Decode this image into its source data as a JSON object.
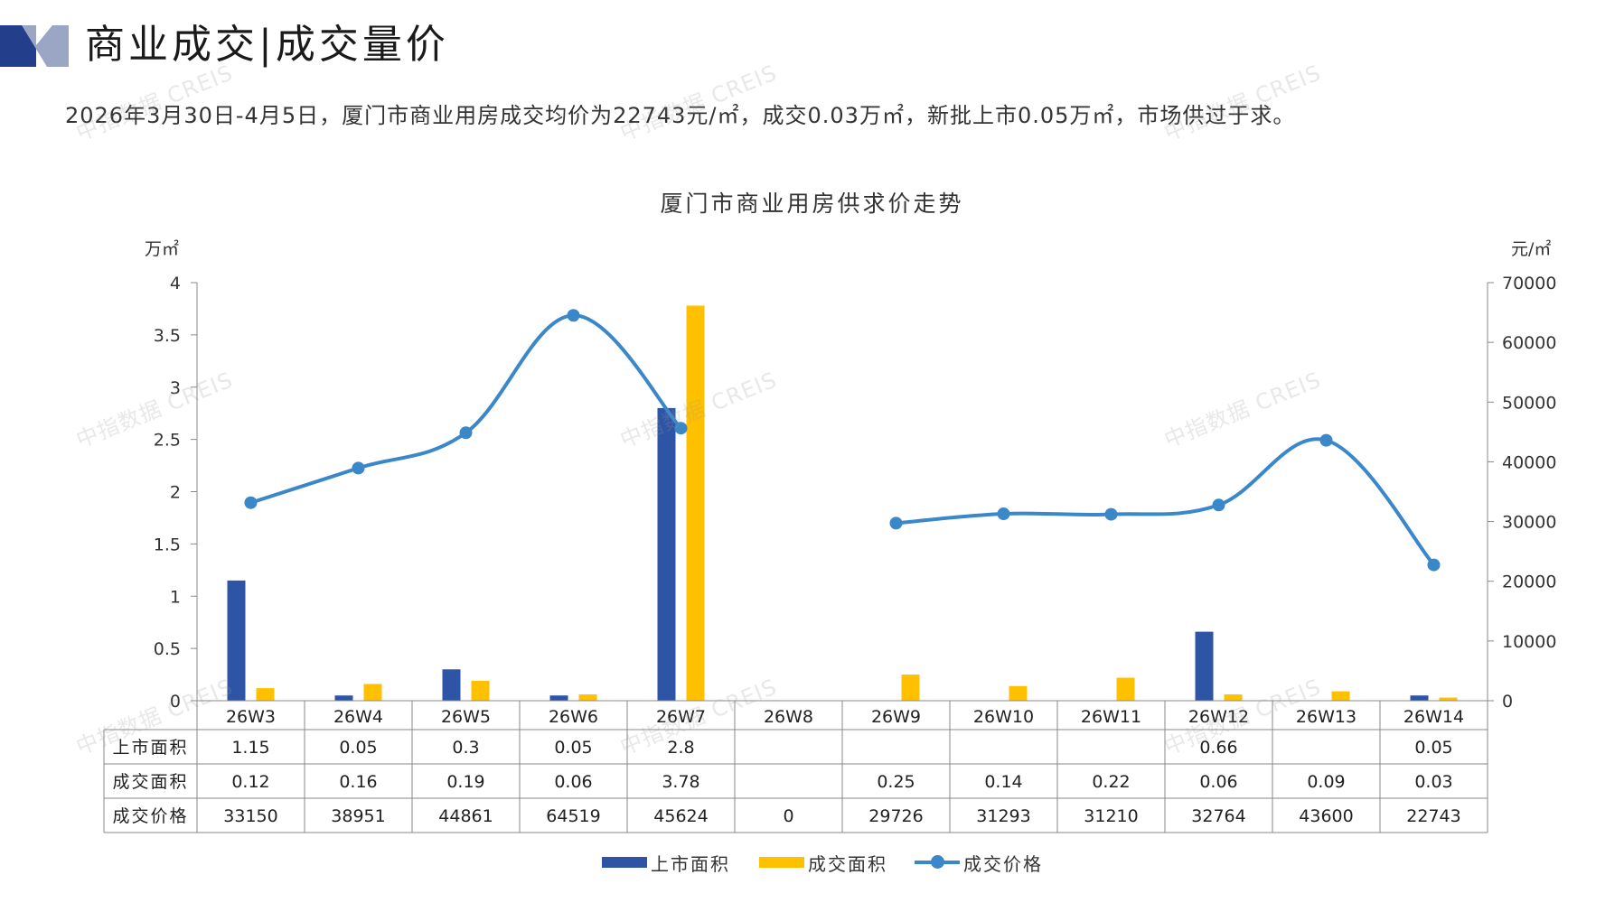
{
  "page": {
    "title": "商业成交|成交量价",
    "summary": "2026年3月30日-4月5日，厦门市商业用房成交均价为22743元/㎡，成交0.03万㎡，新批上市0.05万㎡，市场供过于求。"
  },
  "colors": {
    "listed": "#2E55A5",
    "traded": "#FFC000",
    "price": "#3A87C9",
    "logo_dark": "#233E8B",
    "logo_light": "#9AA6C4"
  },
  "watermark": {
    "text": "中指数据 CREIS"
  },
  "chart_data": {
    "type": "bar+line",
    "title": "厦门市商业用房供求价走势",
    "categories": [
      "26W3",
      "26W4",
      "26W5",
      "26W6",
      "26W7",
      "26W8",
      "26W9",
      "26W10",
      "26W11",
      "26W12",
      "26W13",
      "26W14"
    ],
    "y_left": {
      "unit": "万㎡",
      "ylim": [
        0,
        4
      ],
      "ticks": [
        "0",
        "0.5",
        "1",
        "1.5",
        "2",
        "2.5",
        "3",
        "3.5",
        "4"
      ]
    },
    "y_right": {
      "unit": "元/㎡",
      "ylim": [
        0,
        70000
      ],
      "ticks": [
        "0",
        "10000",
        "20000",
        "30000",
        "40000",
        "50000",
        "60000",
        "70000"
      ]
    },
    "series": [
      {
        "name": "上市面积",
        "type": "bar",
        "axis": "left",
        "values": [
          1.15,
          0.05,
          0.3,
          0.05,
          2.8,
          null,
          null,
          null,
          null,
          0.66,
          null,
          0.05
        ],
        "labels": [
          "1.15",
          "0.05",
          "0.3",
          "0.05",
          "2.8",
          "",
          "",
          "",
          "",
          "0.66",
          "",
          "0.05"
        ]
      },
      {
        "name": "成交面积",
        "type": "bar",
        "axis": "left",
        "values": [
          0.12,
          0.16,
          0.19,
          0.06,
          3.78,
          null,
          0.25,
          0.14,
          0.22,
          0.06,
          0.09,
          0.03
        ],
        "labels": [
          "0.12",
          "0.16",
          "0.19",
          "0.06",
          "3.78",
          "",
          "0.25",
          "0.14",
          "0.22",
          "0.06",
          "0.09",
          "0.03"
        ]
      },
      {
        "name": "成交价格",
        "type": "line",
        "axis": "right",
        "values": [
          33150,
          38951,
          44861,
          64519,
          45624,
          0,
          29726,
          31293,
          31210,
          32764,
          43600,
          22743
        ],
        "labels": [
          "33150",
          "38951",
          "44861",
          "64519",
          "45624",
          "0",
          "29726",
          "31293",
          "31210",
          "32764",
          "43600",
          "22743"
        ]
      }
    ],
    "grid": false,
    "legend_position": "bottom"
  }
}
